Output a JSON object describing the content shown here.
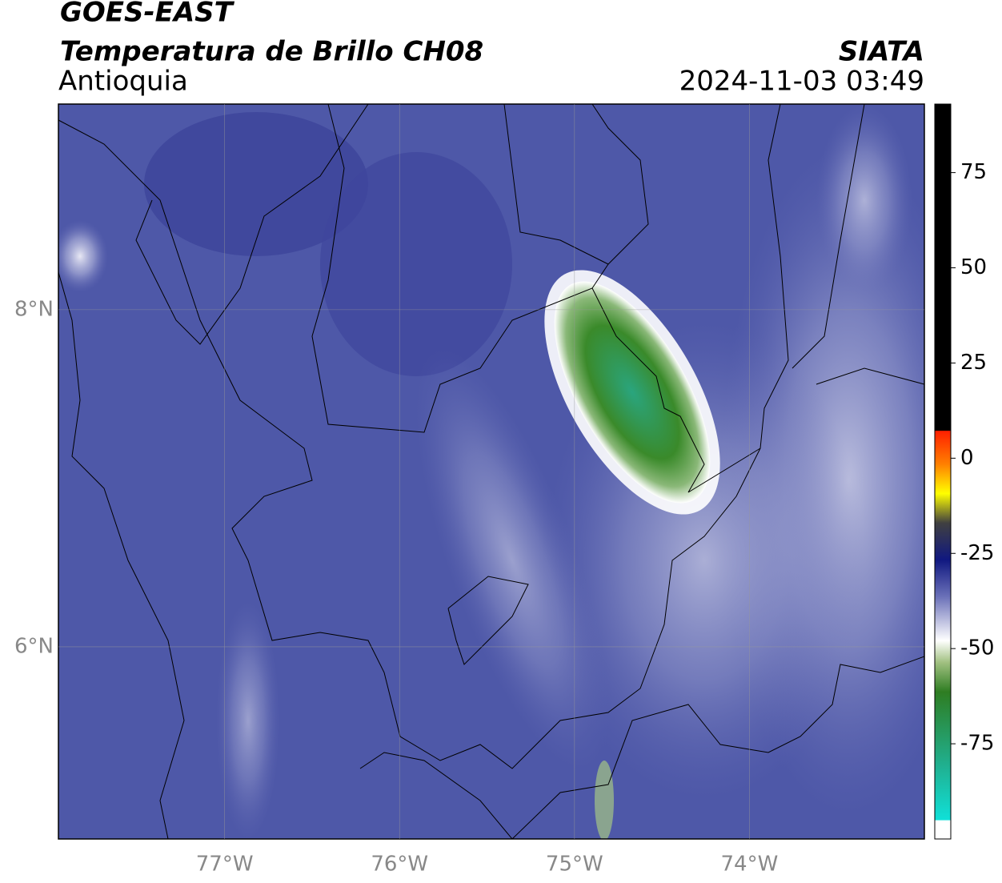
{
  "header": {
    "title": "GOES-EAST",
    "subtitle": "Temperatura de Brillo CH08",
    "region": "Antioquia",
    "source": "SIATA",
    "datetime": "2024-11-03 03:49"
  },
  "map": {
    "xlim": [
      -77.95,
      -73.0
    ],
    "ylim": [
      4.86,
      9.22
    ],
    "xticks": [
      {
        "value": -77,
        "label": "77°W"
      },
      {
        "value": -76,
        "label": "76°W"
      },
      {
        "value": -75,
        "label": "75°W"
      },
      {
        "value": -74,
        "label": "74°W"
      }
    ],
    "yticks": [
      {
        "value": 8,
        "label": "8°N"
      },
      {
        "value": 6,
        "label": "6°N"
      }
    ],
    "grid": true
  },
  "colorbar": {
    "lim": [
      -100,
      93
    ],
    "ticks": [
      75,
      50,
      25,
      0,
      -25,
      -50,
      -75
    ]
  }
}
